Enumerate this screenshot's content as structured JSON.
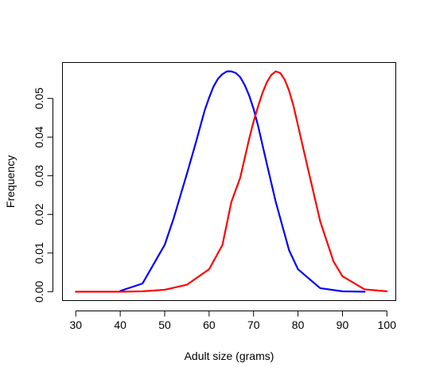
{
  "chart_data": {
    "type": "line",
    "xlabel": "Adult size (grams)",
    "ylabel": "Frequency",
    "xlim": [
      27,
      102
    ],
    "ylim": [
      -0.0023,
      0.0593
    ],
    "x_ticks": [
      30,
      40,
      50,
      60,
      70,
      80,
      90,
      100
    ],
    "y_ticks": [
      0.0,
      0.01,
      0.02,
      0.03,
      0.04,
      0.05
    ],
    "y_tick_labels": [
      "0.00",
      "0.01",
      "0.02",
      "0.03",
      "0.04",
      "0.05"
    ],
    "legend": "none",
    "grid": false,
    "series": [
      {
        "color": "#0000ff",
        "x": [
          40,
          45,
          50,
          52,
          55,
          57,
          59,
          60,
          61,
          62,
          63,
          64,
          65,
          66,
          67,
          68,
          69,
          70,
          71,
          73,
          75,
          78,
          80,
          85,
          90,
          95
        ],
        "y": [
          0.0002,
          0.0021,
          0.0121,
          0.0189,
          0.0305,
          0.0385,
          0.0469,
          0.0502,
          0.0531,
          0.0551,
          0.0563,
          0.057,
          0.057,
          0.0566,
          0.0555,
          0.0535,
          0.0508,
          0.0473,
          0.043,
          0.033,
          0.0232,
          0.0107,
          0.0058,
          0.0009,
          0.0001,
          0.0
        ]
      },
      {
        "color": "#ff0000",
        "x": [
          30,
          40,
          45,
          50,
          55,
          60,
          63,
          65,
          67,
          69,
          70,
          71,
          72,
          73,
          74,
          75,
          76,
          77,
          78,
          79,
          80,
          82,
          85,
          88,
          90,
          95,
          100
        ],
        "y": [
          0.0,
          0.0,
          0.0001,
          0.0005,
          0.0018,
          0.0058,
          0.0121,
          0.0232,
          0.0295,
          0.0395,
          0.044,
          0.0479,
          0.0514,
          0.0542,
          0.0561,
          0.057,
          0.0566,
          0.0549,
          0.052,
          0.048,
          0.043,
          0.033,
          0.0182,
          0.0078,
          0.004,
          0.0006,
          0.0001
        ]
      }
    ]
  }
}
